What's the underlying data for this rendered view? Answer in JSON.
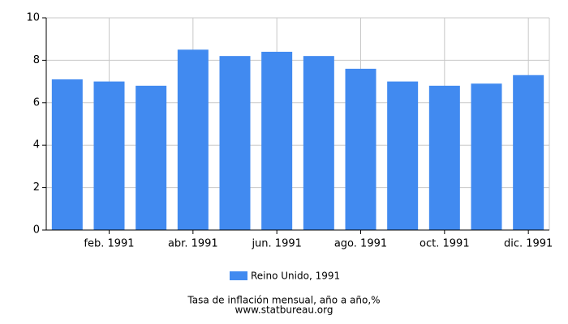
{
  "chart_data": {
    "type": "bar",
    "categories": [
      null,
      "feb. 1991",
      null,
      "abr. 1991",
      null,
      "jun. 1991",
      null,
      "ago. 1991",
      null,
      "oct. 1991",
      null,
      "dic. 1991"
    ],
    "series": [
      {
        "name": "Reino Unido, 1991",
        "color": "#418af0",
        "values": [
          7.1,
          7.0,
          6.8,
          8.5,
          8.2,
          8.4,
          8.2,
          7.6,
          7.0,
          6.8,
          6.9,
          7.3
        ]
      }
    ],
    "ylim": [
      0,
      10
    ],
    "yticks": [
      0,
      2,
      4,
      6,
      8,
      10
    ],
    "grid": true,
    "caption": "Tasa de inflación mensual, año a año,%",
    "source": "www.statbureau.org"
  }
}
